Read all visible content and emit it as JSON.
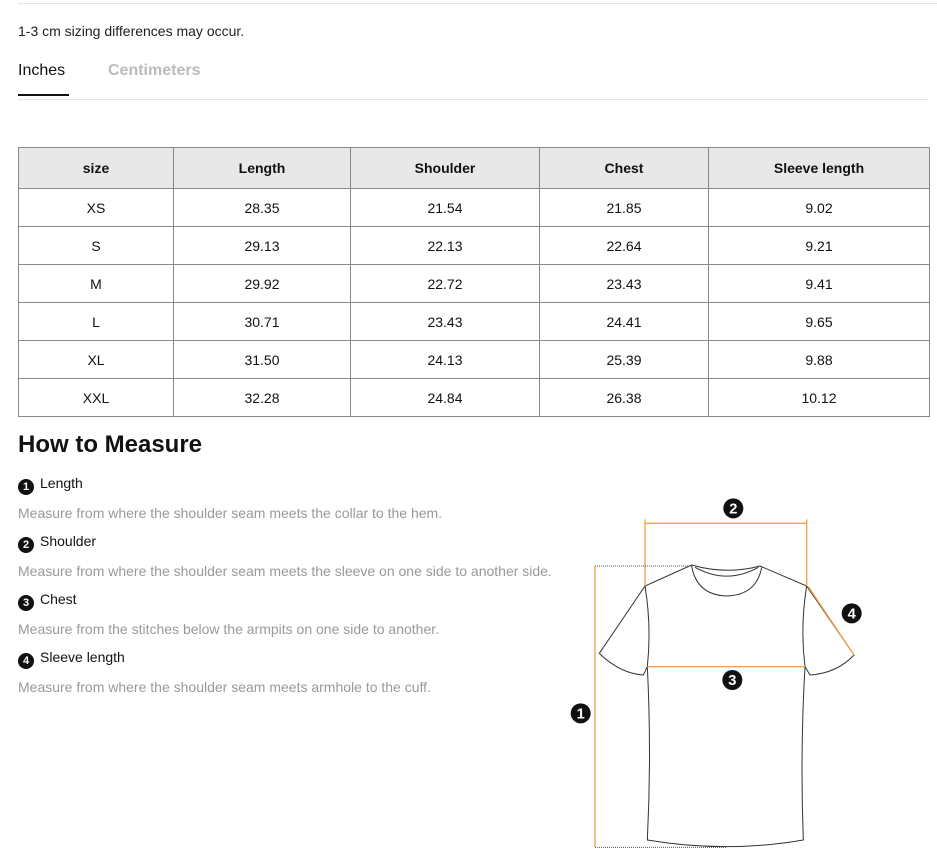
{
  "note": "1-3 cm sizing differences may occur.",
  "tabs": [
    {
      "label": "Inches",
      "active": true
    },
    {
      "label": "Centimeters",
      "active": false
    }
  ],
  "table": {
    "headers": [
      "size",
      "Length",
      "Shoulder",
      "Chest",
      "Sleeve length"
    ],
    "rows": [
      [
        "XS",
        "28.35",
        "21.54",
        "21.85",
        "9.02"
      ],
      [
        "S",
        "29.13",
        "22.13",
        "22.64",
        "9.21"
      ],
      [
        "M",
        "29.92",
        "22.72",
        "23.43",
        "9.41"
      ],
      [
        "L",
        "30.71",
        "23.43",
        "24.41",
        "9.65"
      ],
      [
        "XL",
        "31.50",
        "24.13",
        "25.39",
        "9.88"
      ],
      [
        "XXL",
        "32.28",
        "24.84",
        "26.38",
        "10.12"
      ]
    ]
  },
  "how_to": {
    "title": "How to Measure",
    "items": [
      {
        "num": "1",
        "label": "Length",
        "desc": "Measure from where the shoulder seam meets the collar to the hem."
      },
      {
        "num": "2",
        "label": "Shoulder",
        "desc": "Measure from where the shoulder seam meets the sleeve on one side to another side."
      },
      {
        "num": "3",
        "label": "Chest",
        "desc": "Measure from the stitches below the armpits on one side to another."
      },
      {
        "num": "4",
        "label": "Sleeve length",
        "desc": "Measure from where the shoulder seam meets armhole to the cuff."
      }
    ]
  },
  "colors": {
    "measure_line": "#f5a04a",
    "header_bg": "#e8e8e8"
  }
}
